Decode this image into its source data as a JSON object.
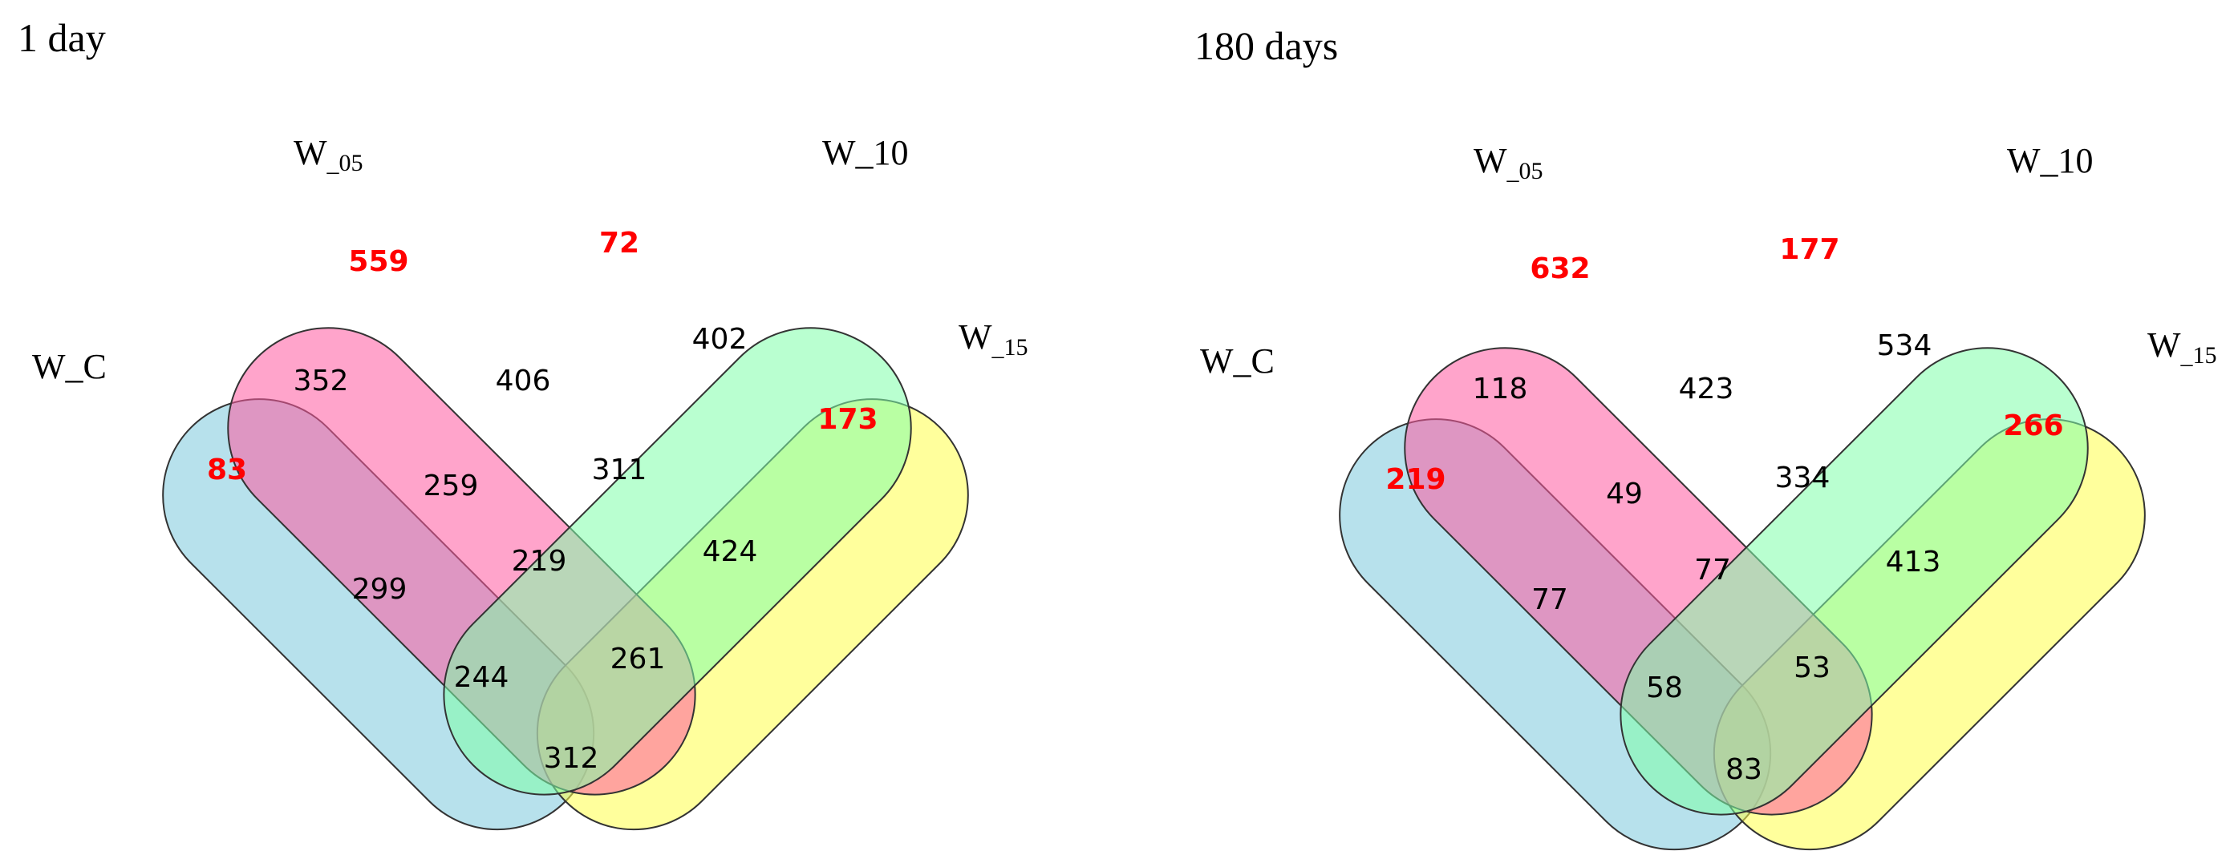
{
  "colors": {
    "set_w_c": "#7cc8dc",
    "set_w_05": "#ff5aa0",
    "set_w_10": "#80ffaa",
    "set_w_15": "#ffff4a",
    "outline": "#333333",
    "unique_count": "#ff0000",
    "shared_count": "#000000"
  },
  "panels": [
    {
      "title": "1 day",
      "labels": {
        "w_c": "W_C",
        "w_05_main": "W",
        "w_05_sub": "_05",
        "w_10": "W_10",
        "w_15_main": "W",
        "w_15_sub": "_15"
      },
      "counts": {
        "w05_only": "559",
        "w10_only": "72",
        "w15_only": "173",
        "wc_only": "83",
        "wc_w05": "352",
        "w05_w10": "406",
        "w10_w15": "402",
        "wc_w05_w10": "259",
        "w05_w10_w15": "311",
        "all": "219",
        "wc_w10": "299",
        "w05_w15": "424",
        "wc_w10_w15": "244",
        "wc_w05_w15": "261",
        "wc_w15": "312"
      }
    },
    {
      "title": "180 days",
      "labels": {
        "w_c": "W_C",
        "w_05_main": "W",
        "w_05_sub": "_05",
        "w_10": "W_10",
        "w_15_main": "W",
        "w_15_sub": "_15"
      },
      "counts": {
        "w05_only": "632",
        "w10_only": "177",
        "w15_only": "266",
        "wc_only": "219",
        "wc_w05": "118",
        "w05_w10": "423",
        "w10_w15": "534",
        "wc_w05_w10": "49",
        "w05_w10_w15": "334",
        "all": "77",
        "wc_w10": "77",
        "w05_w15": "413",
        "wc_w10_w15": "58",
        "wc_w05_w15": "53",
        "wc_w15": "83"
      }
    }
  ]
}
